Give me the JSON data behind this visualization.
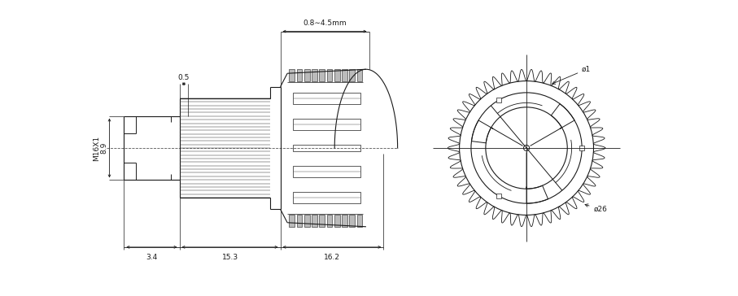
{
  "bg_color": "#ffffff",
  "line_color": "#1a1a1a",
  "dim_color": "#1a1a1a",
  "annotations": {
    "panel_thickness": "0.8∼4.5mm",
    "dim_05": "0.5",
    "dim_89": "8.9",
    "thread": "M16X1",
    "dim_34": "3.4",
    "dim_153": "15.3",
    "dim_162": "16.2",
    "phi1": "ø1",
    "phi26": "ø26"
  },
  "figsize": [
    9.07,
    3.64
  ],
  "dpi": 100
}
